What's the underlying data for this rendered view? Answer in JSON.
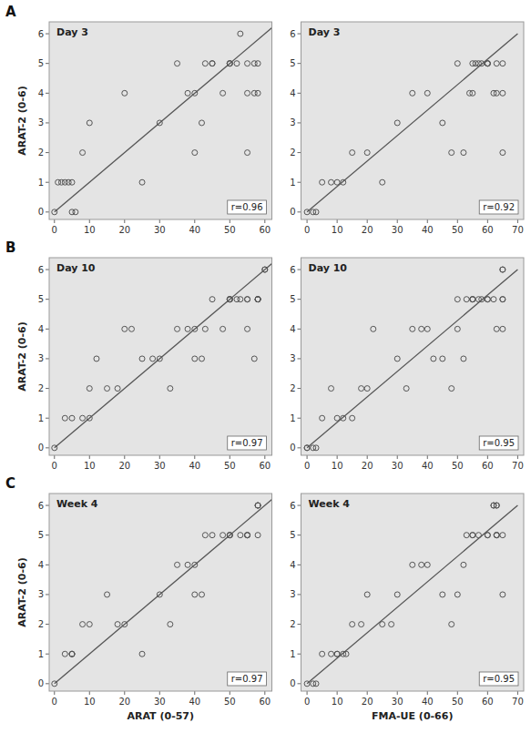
{
  "chart_data": [
    {
      "type": "scatter",
      "title": "Day 3",
      "annotation": "r=0.96",
      "panel_label": "A",
      "ylabel": "ARAT-2 (0-6)",
      "xlim": [
        -1.5,
        62
      ],
      "ylim": [
        -0.25,
        6.4
      ],
      "xticks": [
        0,
        10,
        20,
        30,
        40,
        50,
        60
      ],
      "yticks": [
        0,
        1,
        2,
        3,
        4,
        5,
        6
      ],
      "grid": false,
      "series": [
        {
          "type": "scatter",
          "marker": "circle",
          "color": "#555555",
          "x": [
            0,
            1,
            2,
            3,
            4,
            5,
            5,
            6,
            8,
            10,
            20,
            25,
            30,
            35,
            38,
            40,
            40,
            42,
            43,
            45,
            45,
            48,
            50,
            50,
            50,
            52,
            53,
            55,
            55,
            55,
            57,
            57,
            58,
            58
          ],
          "values": [
            0,
            1,
            1,
            1,
            1,
            1,
            0,
            0,
            2,
            3,
            4,
            1,
            3,
            5,
            4,
            4,
            2,
            3,
            5,
            5,
            5,
            4,
            5,
            5,
            5,
            5,
            6,
            5,
            4,
            2,
            5,
            4,
            5,
            4
          ]
        },
        {
          "type": "line",
          "line_style": "solid",
          "color": "#555555",
          "x": [
            0,
            62
          ],
          "values": [
            0,
            6.2
          ]
        }
      ]
    },
    {
      "type": "scatter",
      "title": "Day 3",
      "annotation": "r=0.92",
      "xlim": [
        -2,
        72
      ],
      "ylim": [
        -0.25,
        6.4
      ],
      "xticks": [
        0,
        10,
        20,
        30,
        40,
        50,
        60,
        70
      ],
      "yticks": [
        0,
        1,
        2,
        3,
        4,
        5,
        6
      ],
      "grid": false,
      "series": [
        {
          "type": "scatter",
          "marker": "circle",
          "color": "#555555",
          "x": [
            0,
            2,
            3,
            5,
            8,
            10,
            12,
            15,
            20,
            25,
            30,
            35,
            40,
            45,
            48,
            50,
            52,
            54,
            55,
            55,
            56,
            57,
            58,
            60,
            60,
            60,
            62,
            63,
            63,
            65,
            65,
            65
          ],
          "values": [
            0,
            0,
            0,
            1,
            1,
            1,
            1,
            2,
            2,
            1,
            3,
            4,
            4,
            3,
            2,
            5,
            2,
            4,
            5,
            4,
            5,
            5,
            5,
            5,
            5,
            5,
            4,
            5,
            4,
            4,
            2,
            5
          ]
        },
        {
          "type": "line",
          "line_style": "solid",
          "color": "#555555",
          "x": [
            0,
            70
          ],
          "values": [
            0,
            6.0
          ]
        }
      ]
    },
    {
      "type": "scatter",
      "title": "Day 10",
      "annotation": "r=0.97",
      "panel_label": "B",
      "ylabel": "ARAT-2 (0-6)",
      "xlim": [
        -1.5,
        62
      ],
      "ylim": [
        -0.25,
        6.4
      ],
      "xticks": [
        0,
        10,
        20,
        30,
        40,
        50,
        60
      ],
      "yticks": [
        0,
        1,
        2,
        3,
        4,
        5,
        6
      ],
      "grid": false,
      "series": [
        {
          "type": "scatter",
          "marker": "circle",
          "color": "#555555",
          "x": [
            0,
            3,
            5,
            8,
            10,
            10,
            12,
            15,
            18,
            20,
            22,
            25,
            28,
            30,
            33,
            35,
            38,
            40,
            40,
            42,
            43,
            45,
            48,
            50,
            50,
            50,
            50,
            52,
            53,
            55,
            55,
            55,
            57,
            58,
            58,
            58,
            58,
            58,
            60,
            60
          ],
          "values": [
            0,
            1,
            1,
            1,
            2,
            1,
            3,
            2,
            2,
            4,
            4,
            3,
            3,
            3,
            2,
            4,
            4,
            4,
            3,
            3,
            4,
            5,
            4,
            5,
            5,
            5,
            5,
            5,
            5,
            4,
            5,
            5,
            3,
            5,
            5,
            5,
            5,
            5,
            6,
            6
          ]
        },
        {
          "type": "line",
          "line_style": "solid",
          "color": "#555555",
          "x": [
            0,
            62
          ],
          "values": [
            0,
            6.2
          ]
        }
      ]
    },
    {
      "type": "scatter",
      "title": "Day 10",
      "annotation": "r=0.95",
      "xlim": [
        -2,
        72
      ],
      "ylim": [
        -0.25,
        6.4
      ],
      "xticks": [
        0,
        10,
        20,
        30,
        40,
        50,
        60,
        70
      ],
      "yticks": [
        0,
        1,
        2,
        3,
        4,
        5,
        6
      ],
      "grid": false,
      "series": [
        {
          "type": "scatter",
          "marker": "circle",
          "color": "#555555",
          "x": [
            0,
            0,
            2,
            3,
            5,
            8,
            10,
            12,
            15,
            18,
            20,
            22,
            30,
            33,
            35,
            38,
            40,
            42,
            45,
            48,
            50,
            50,
            52,
            53,
            55,
            55,
            55,
            57,
            58,
            60,
            60,
            62,
            63,
            65,
            65,
            65,
            65,
            65
          ],
          "values": [
            0,
            0,
            0,
            0,
            1,
            2,
            1,
            1,
            1,
            2,
            2,
            4,
            3,
            2,
            4,
            4,
            4,
            3,
            3,
            2,
            4,
            5,
            3,
            5,
            5,
            5,
            5,
            5,
            5,
            5,
            5,
            5,
            4,
            4,
            5,
            5,
            6,
            6
          ]
        },
        {
          "type": "line",
          "line_style": "solid",
          "color": "#555555",
          "x": [
            0,
            70
          ],
          "values": [
            0,
            6.0
          ]
        }
      ]
    },
    {
      "type": "scatter",
      "title": "Week 4",
      "annotation": "r=0.97",
      "panel_label": "C",
      "xlabel": "ARAT (0-57)",
      "ylabel": "ARAT-2 (0-6)",
      "xlim": [
        -1.5,
        62
      ],
      "ylim": [
        -0.25,
        6.4
      ],
      "xticks": [
        0,
        10,
        20,
        30,
        40,
        50,
        60
      ],
      "yticks": [
        0,
        1,
        2,
        3,
        4,
        5,
        6
      ],
      "grid": false,
      "series": [
        {
          "type": "scatter",
          "marker": "circle",
          "color": "#555555",
          "x": [
            0,
            3,
            5,
            5,
            5,
            8,
            10,
            15,
            18,
            20,
            25,
            30,
            33,
            35,
            38,
            40,
            40,
            42,
            43,
            45,
            48,
            50,
            50,
            50,
            53,
            55,
            55,
            55,
            58,
            58,
            58,
            58
          ],
          "values": [
            0,
            1,
            1,
            1,
            1,
            2,
            2,
            3,
            2,
            2,
            1,
            3,
            2,
            4,
            4,
            4,
            3,
            3,
            5,
            5,
            5,
            5,
            5,
            5,
            5,
            5,
            5,
            5,
            5,
            6,
            6,
            6
          ]
        },
        {
          "type": "line",
          "line_style": "solid",
          "color": "#555555",
          "x": [
            0,
            62
          ],
          "values": [
            0,
            6.2
          ]
        }
      ]
    },
    {
      "type": "scatter",
      "title": "Week 4",
      "annotation": "r=0.95",
      "xlabel": "FMA-UE (0-66)",
      "xlim": [
        -2,
        72
      ],
      "ylim": [
        -0.25,
        6.4
      ],
      "xticks": [
        0,
        10,
        20,
        30,
        40,
        50,
        60,
        70
      ],
      "yticks": [
        0,
        1,
        2,
        3,
        4,
        5,
        6
      ],
      "grid": false,
      "series": [
        {
          "type": "scatter",
          "marker": "circle",
          "color": "#555555",
          "x": [
            0,
            2,
            3,
            5,
            8,
            10,
            10,
            12,
            13,
            15,
            18,
            20,
            25,
            28,
            30,
            35,
            38,
            40,
            45,
            48,
            50,
            52,
            53,
            55,
            55,
            57,
            60,
            60,
            62,
            62,
            63,
            63,
            63,
            63,
            63,
            65,
            65
          ],
          "values": [
            0,
            0,
            0,
            1,
            1,
            1,
            1,
            1,
            1,
            2,
            2,
            3,
            2,
            2,
            3,
            4,
            4,
            4,
            3,
            2,
            3,
            4,
            5,
            5,
            5,
            5,
            5,
            5,
            6,
            6,
            6,
            6,
            5,
            5,
            5,
            5,
            3
          ]
        },
        {
          "type": "line",
          "line_style": "solid",
          "color": "#555555",
          "x": [
            0,
            70
          ],
          "values": [
            0,
            6.0
          ]
        }
      ]
    }
  ]
}
